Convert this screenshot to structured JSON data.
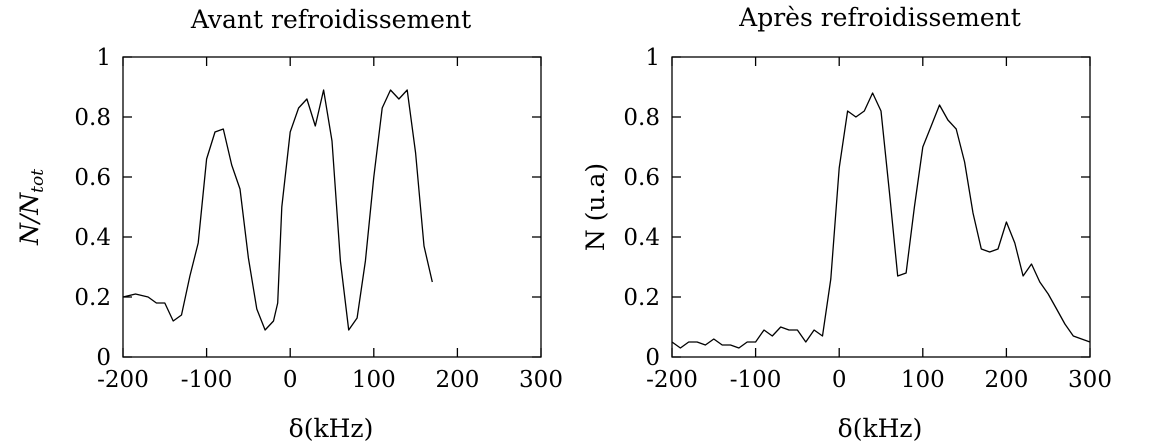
{
  "chart_data": [
    {
      "type": "line",
      "title": "Avant refroidissement",
      "xlabel": "δ(kHz)",
      "ylabel": "N/N",
      "ylabel_sub": "tot",
      "xlim": [
        -200,
        300
      ],
      "ylim": [
        0,
        1
      ],
      "xticks": [
        "-200",
        "-100",
        "0",
        "100",
        "200",
        "300"
      ],
      "yticks": [
        "0",
        "0.2",
        "0.4",
        "0.6",
        "0.8",
        "1"
      ],
      "grid": false,
      "series": [
        {
          "x": [
            -200,
            -185,
            -170,
            -160,
            -150,
            -140,
            -130,
            -120,
            -110,
            -100,
            -90,
            -80,
            -70,
            -60,
            -50,
            -40,
            -30,
            -20,
            -15,
            -10,
            0,
            10,
            20,
            30,
            40,
            50,
            60,
            70,
            80,
            90,
            100,
            110,
            120,
            130,
            140,
            150,
            160,
            170
          ],
          "y": [
            0.2,
            0.21,
            0.2,
            0.18,
            0.18,
            0.12,
            0.14,
            0.27,
            0.38,
            0.66,
            0.75,
            0.76,
            0.64,
            0.56,
            0.33,
            0.16,
            0.09,
            0.12,
            0.18,
            0.5,
            0.75,
            0.83,
            0.86,
            0.77,
            0.89,
            0.72,
            0.32,
            0.09,
            0.13,
            0.32,
            0.6,
            0.83,
            0.89,
            0.86,
            0.89,
            0.68,
            0.37,
            0.25
          ]
        }
      ]
    },
    {
      "type": "line",
      "title": "Après refroidissement",
      "xlabel": "δ(kHz)",
      "ylabel": "N (u.a)",
      "ylabel_sub": "",
      "xlim": [
        -200,
        300
      ],
      "ylim": [
        0,
        1
      ],
      "xticks": [
        "-200",
        "-100",
        "0",
        "100",
        "200",
        "300"
      ],
      "yticks": [
        "0",
        "0.2",
        "0.4",
        "0.6",
        "0.8",
        "1"
      ],
      "grid": false,
      "series": [
        {
          "x": [
            -200,
            -190,
            -180,
            -170,
            -160,
            -150,
            -140,
            -130,
            -120,
            -110,
            -100,
            -90,
            -80,
            -70,
            -60,
            -50,
            -40,
            -30,
            -20,
            -10,
            0,
            10,
            20,
            30,
            40,
            50,
            60,
            70,
            80,
            90,
            100,
            110,
            120,
            130,
            140,
            150,
            160,
            170,
            180,
            190,
            200,
            210,
            220,
            230,
            240,
            250,
            260,
            270,
            280,
            290,
            300
          ],
          "y": [
            0.05,
            0.03,
            0.05,
            0.05,
            0.04,
            0.06,
            0.04,
            0.04,
            0.03,
            0.05,
            0.05,
            0.09,
            0.07,
            0.1,
            0.09,
            0.09,
            0.05,
            0.09,
            0.07,
            0.26,
            0.63,
            0.82,
            0.8,
            0.82,
            0.88,
            0.82,
            0.55,
            0.27,
            0.28,
            0.5,
            0.7,
            0.77,
            0.84,
            0.79,
            0.76,
            0.65,
            0.48,
            0.36,
            0.35,
            0.36,
            0.45,
            0.38,
            0.27,
            0.31,
            0.25,
            0.21,
            0.16,
            0.11,
            0.07,
            0.06,
            0.05
          ]
        }
      ]
    }
  ]
}
